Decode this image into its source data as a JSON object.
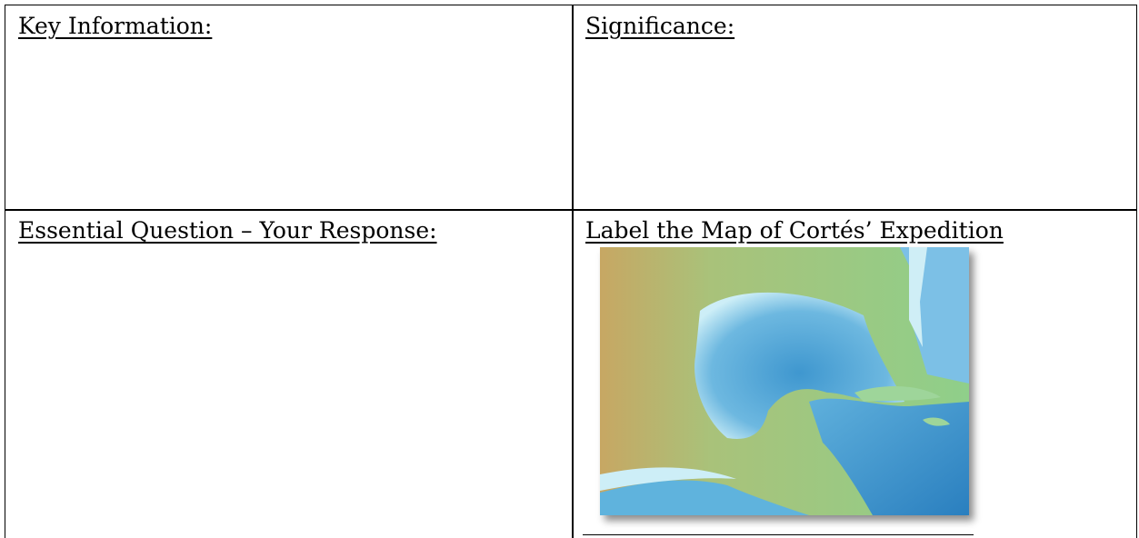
{
  "table": {
    "rows": [
      [
        "Key Information:",
        "Significance:"
      ],
      [
        "Essential Question – Your Response:",
        "Label the Map of Cortés’ Expedition"
      ]
    ]
  }
}
